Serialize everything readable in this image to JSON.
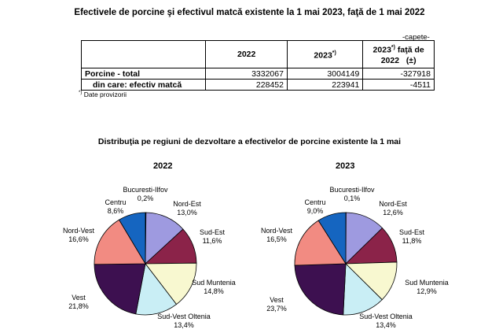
{
  "title": "Efectivele de porcine şi efectivul matcă existente la 1 mai 2023, faţă de 1 mai 2022",
  "unit": "-capete-",
  "table": {
    "headers": [
      "",
      "2022",
      "2023*)",
      "2023*) faţă de 2022 (±)"
    ],
    "rows": [
      {
        "label": "Porcine - total",
        "v2022": "3332067",
        "v2023": "3004149",
        "diff": "-327918"
      },
      {
        "label": "din care: efectiv matcă",
        "v2022": "228452",
        "v2023": "223941",
        "diff": "-4511"
      }
    ]
  },
  "note": "Date provizorii",
  "note_mark": "*)",
  "subtitle": "Distribuţia pe regiuni de dezvoltare a efectivelor de porcine existente la 1 mai",
  "chart_data": [
    {
      "type": "pie",
      "title": "2022",
      "slices": [
        {
          "name": "Bucuresti-Ilfov",
          "value": 0.2,
          "label": "0,2%",
          "color": "#1a237e"
        },
        {
          "name": "Nord-Est",
          "value": 13.0,
          "label": "13,0%",
          "color": "#9e9ae0"
        },
        {
          "name": "Sud-Est",
          "value": 11.6,
          "label": "11,6%",
          "color": "#8b2349"
        },
        {
          "name": "Sud Muntenia",
          "value": 14.8,
          "label": "14,8%",
          "color": "#f8f8d0"
        },
        {
          "name": "Sud-Vest Oltenia",
          "value": 13.4,
          "label": "13,4%",
          "color": "#c9eef5"
        },
        {
          "name": "Vest",
          "value": 21.8,
          "label": "21,8%",
          "color": "#3d1050"
        },
        {
          "name": "Nord-Vest",
          "value": 16.6,
          "label": "16,6%",
          "color": "#f28b82"
        },
        {
          "name": "Centru",
          "value": 8.6,
          "label": "8,6%",
          "color": "#1565c0"
        }
      ]
    },
    {
      "type": "pie",
      "title": "2023",
      "slices": [
        {
          "name": "Bucuresti-Ilfov",
          "value": 0.1,
          "label": "0,1%",
          "color": "#1a237e"
        },
        {
          "name": "Nord-Est",
          "value": 12.6,
          "label": "12,6%",
          "color": "#9e9ae0"
        },
        {
          "name": "Sud-Est",
          "value": 11.8,
          "label": "11,8%",
          "color": "#8b2349"
        },
        {
          "name": "Sud Muntenia",
          "value": 12.9,
          "label": "12,9%",
          "color": "#f8f8d0"
        },
        {
          "name": "Sud-Vest Oltenia",
          "value": 13.4,
          "label": "13,4%",
          "color": "#c9eef5"
        },
        {
          "name": "Vest",
          "value": 23.7,
          "label": "23,7%",
          "color": "#3d1050"
        },
        {
          "name": "Nord-Vest",
          "value": 16.5,
          "label": "16,5%",
          "color": "#f28b82"
        },
        {
          "name": "Centru",
          "value": 9.0,
          "label": "9,0%",
          "color": "#1565c0"
        }
      ]
    }
  ]
}
